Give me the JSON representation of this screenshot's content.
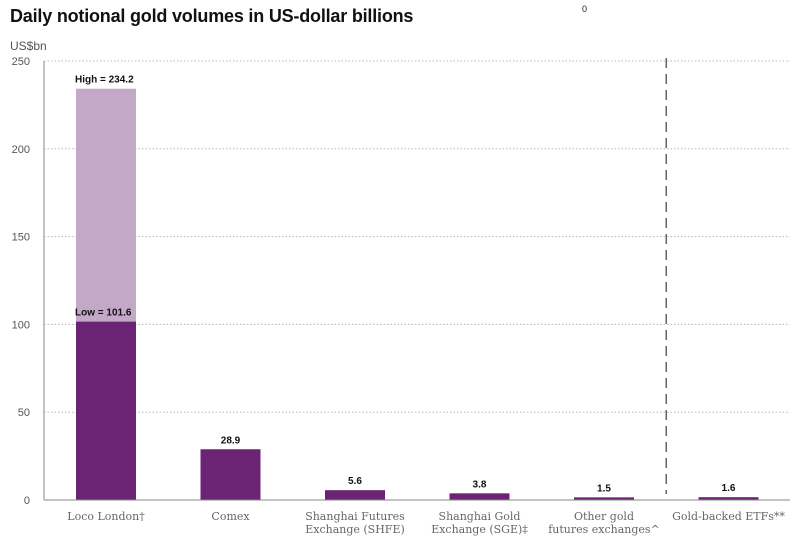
{
  "header": {
    "title": "Daily notional gold volumes in US-dollar billions",
    "stray_mark": "0",
    "unit": "US$bn"
  },
  "colors": {
    "bar": "#6b2473",
    "bar_high": "#c4a8c8",
    "grid": "#b8b8b8",
    "axis": "#888888",
    "divider": "#666666"
  },
  "chart_data": {
    "type": "bar",
    "title": "Daily notional gold volumes in US-dollar billions",
    "ylabel": "US$bn",
    "xlabel": "",
    "ylim": [
      0,
      250
    ],
    "yticks": [
      0,
      50,
      100,
      150,
      200,
      250
    ],
    "grid": true,
    "grid_style": "dotted",
    "legend": "none",
    "divider_before_category": 5,
    "categories": [
      [
        "Loco London†"
      ],
      [
        "Comex"
      ],
      [
        "Shanghai Futures",
        "Exchange (SHFE)"
      ],
      [
        "Shanghai Gold",
        "Exchange (SGE)‡"
      ],
      [
        "Other gold",
        "futures exchanges^"
      ],
      [
        "Gold-backed ETFs**"
      ]
    ],
    "values": [
      101.6,
      28.9,
      5.6,
      3.8,
      1.5,
      1.6
    ],
    "labels": [
      "Low = 101.6",
      "28.9",
      "5.6",
      "3.8",
      "1.5",
      "1.6"
    ],
    "range_high": {
      "category_index": 0,
      "value": 234.2,
      "label": "High = 234.2"
    }
  }
}
